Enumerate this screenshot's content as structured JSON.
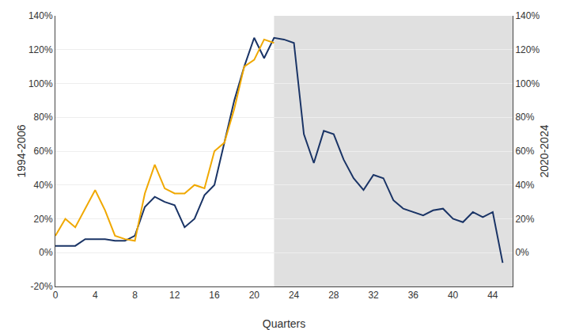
{
  "chart_data": {
    "type": "line",
    "xlabel": "Quarters",
    "ylabel": "1994-2006",
    "y2label": "2020-2024",
    "series": [
      {
        "color": "#1a3466",
        "x": [
          0,
          1,
          2,
          3,
          4,
          5,
          6,
          7,
          8,
          9,
          10,
          11,
          12,
          13,
          14,
          15,
          16,
          17,
          18,
          19,
          20,
          21,
          22,
          23,
          24,
          25,
          26,
          27,
          28,
          29,
          30,
          31,
          32,
          33,
          34,
          35,
          36,
          37,
          38,
          39,
          40,
          41,
          42,
          43,
          44,
          45
        ],
        "values": [
          0.04,
          0.04,
          0.04,
          0.08,
          0.08,
          0.08,
          0.07,
          0.07,
          0.1,
          0.27,
          0.33,
          0.3,
          0.28,
          0.15,
          0.2,
          0.34,
          0.4,
          0.65,
          0.9,
          1.1,
          1.27,
          1.15,
          1.27,
          1.26,
          1.24,
          0.7,
          0.53,
          0.72,
          0.7,
          0.55,
          0.44,
          0.37,
          0.46,
          0.44,
          0.31,
          0.26,
          0.24,
          0.22,
          0.25,
          0.26,
          0.2,
          0.18,
          0.24,
          0.21,
          0.24,
          -0.06
        ]
      },
      {
        "color": "#f0a800",
        "x": [
          0,
          1,
          2,
          3,
          4,
          5,
          6,
          7,
          8,
          9,
          10,
          11,
          12,
          13,
          14,
          15,
          16,
          17,
          18,
          19,
          20,
          21,
          22
        ],
        "values": [
          0.1,
          0.2,
          0.15,
          0.26,
          0.37,
          0.25,
          0.1,
          0.08,
          0.07,
          0.35,
          0.52,
          0.38,
          0.35,
          0.35,
          0.4,
          0.38,
          0.6,
          0.65,
          0.85,
          1.1,
          1.14,
          1.26,
          1.24
        ]
      }
    ],
    "shaded_region": {
      "start": 22,
      "end": 46,
      "color": "#e0e0e0"
    },
    "xlim": [
      0,
      46
    ],
    "xticks": [
      0,
      4,
      8,
      12,
      16,
      20,
      24,
      28,
      32,
      36,
      40,
      44
    ],
    "ylim": [
      -0.2,
      1.4
    ],
    "yticks": [
      {
        "value": -0.2,
        "label": "-20%"
      },
      {
        "value": 0.0,
        "label": "0%"
      },
      {
        "value": 0.2,
        "label": "20%"
      },
      {
        "value": 0.4,
        "label": "40%"
      },
      {
        "value": 0.6,
        "label": "60%"
      },
      {
        "value": 0.8,
        "label": "80%"
      },
      {
        "value": 1.0,
        "label": "100%"
      },
      {
        "value": 1.2,
        "label": "120%"
      },
      {
        "value": 1.4,
        "label": "140%"
      }
    ],
    "y2lim": [
      -0.2,
      1.4
    ],
    "y2ticks": [
      {
        "value": 0.0,
        "label": "0%"
      },
      {
        "value": 0.2,
        "label": "20%"
      },
      {
        "value": 0.4,
        "label": "40%"
      },
      {
        "value": 0.6,
        "label": "60%"
      },
      {
        "value": 0.8,
        "label": "80%"
      },
      {
        "value": 1.0,
        "label": "100%"
      },
      {
        "value": 1.2,
        "label": "120%"
      },
      {
        "value": 1.4,
        "label": "140%"
      }
    ],
    "grid": true
  }
}
